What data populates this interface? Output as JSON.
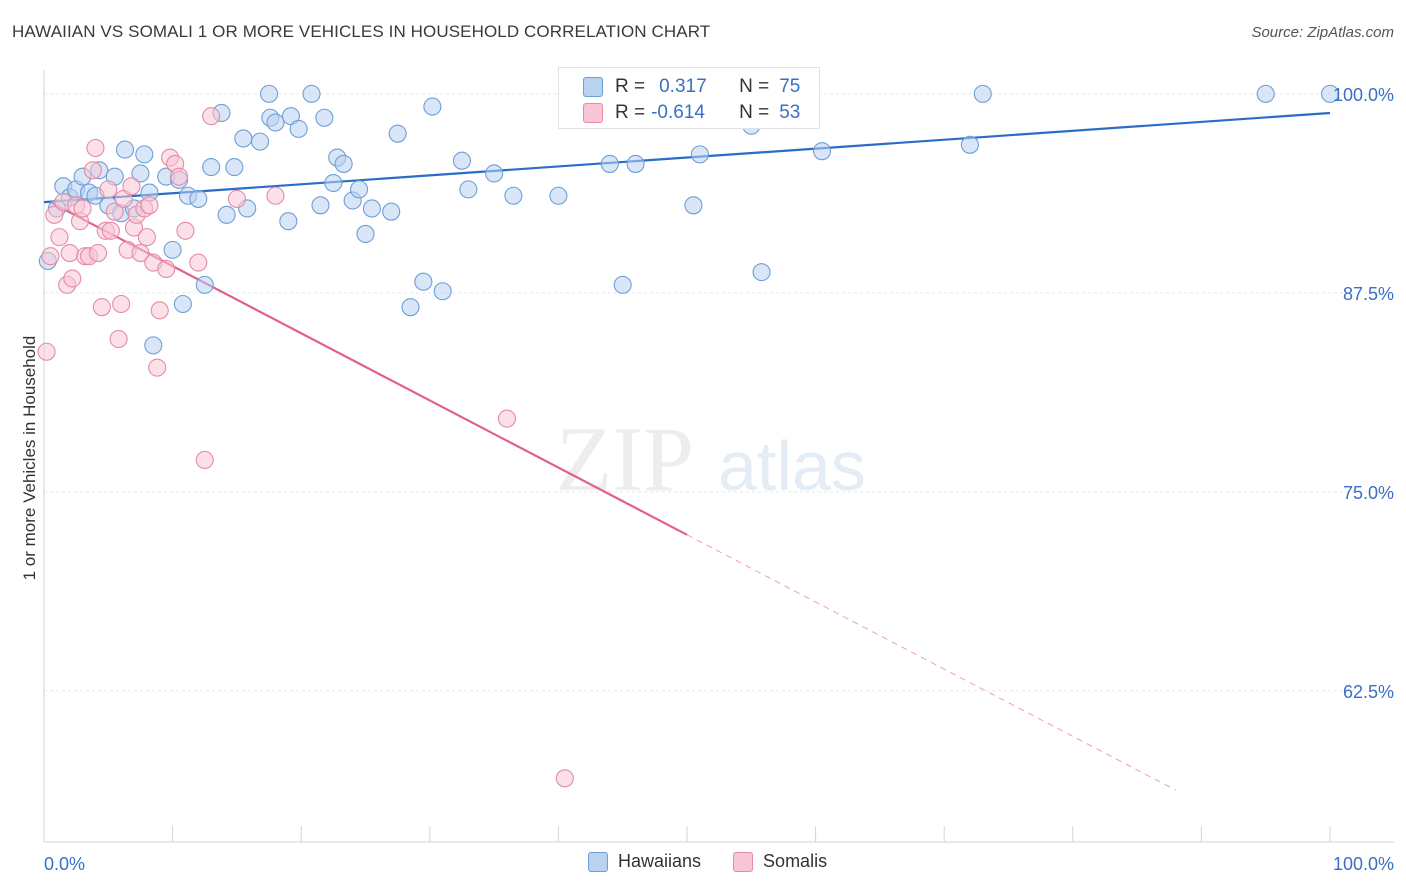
{
  "title": "HAWAIIAN VS SOMALI 1 OR MORE VEHICLES IN HOUSEHOLD CORRELATION CHART",
  "source": "Source: ZipAtlas.com",
  "watermark": {
    "zip": "ZIP",
    "atlas": "atlas"
  },
  "colors": {
    "hawaiians_fill": "#b8d2f0",
    "hawaiians_stroke": "#6d9fd8",
    "hawaiians_line": "#2a6cc8",
    "somalis_fill": "#f7c6d6",
    "somalis_stroke": "#e58aa9",
    "somalis_line": "#e0608e",
    "axis_label": "#3a6fc4"
  },
  "stats": {
    "hawaiians": {
      "r_label": "R =",
      "r_value": "0.317",
      "n_label": "N =",
      "n_value": "75"
    },
    "somalis": {
      "r_label": "R =",
      "r_value": "-0.614",
      "n_label": "N =",
      "n_value": "53"
    }
  },
  "chart_data": {
    "type": "scatter",
    "title": "HAWAIIAN VS SOMALI 1 OR MORE VEHICLES IN HOUSEHOLD CORRELATION CHART",
    "xlabel": "",
    "ylabel": "1 or more Vehicles in Household",
    "xlim": [
      0,
      100
    ],
    "ylim": [
      53,
      101.5
    ],
    "x_tick_labels": {
      "left": "0.0%",
      "right": "100.0%"
    },
    "y_ticks": [
      {
        "value": 100,
        "label": "100.0%"
      },
      {
        "value": 87.5,
        "label": "87.5%"
      },
      {
        "value": 75,
        "label": "75.0%"
      },
      {
        "value": 62.5,
        "label": "62.5%"
      }
    ],
    "grid": true,
    "legend": [
      "Hawaiians",
      "Somalis"
    ],
    "series": [
      {
        "name": "Hawaiians",
        "trend": {
          "x0": 0,
          "y0": 93.2,
          "x1": 100,
          "y1": 98.8,
          "dashed_from": null
        },
        "points": [
          [
            0.3,
            89.5
          ],
          [
            1.0,
            92.8
          ],
          [
            1.5,
            94.2
          ],
          [
            2.0,
            93.5
          ],
          [
            2.5,
            94.0
          ],
          [
            3.0,
            94.8
          ],
          [
            3.5,
            93.8
          ],
          [
            4.0,
            93.6
          ],
          [
            4.3,
            95.2
          ],
          [
            5.0,
            93.0
          ],
          [
            5.5,
            94.8
          ],
          [
            6.0,
            92.5
          ],
          [
            6.3,
            96.5
          ],
          [
            7.0,
            92.8
          ],
          [
            7.5,
            95.0
          ],
          [
            7.8,
            96.2
          ],
          [
            8.2,
            93.8
          ],
          [
            8.5,
            84.2
          ],
          [
            9.5,
            94.8
          ],
          [
            10.0,
            90.2
          ],
          [
            10.5,
            94.6
          ],
          [
            10.8,
            86.8
          ],
          [
            11.2,
            93.6
          ],
          [
            12.0,
            93.4
          ],
          [
            12.5,
            88.0
          ],
          [
            13.0,
            95.4
          ],
          [
            13.8,
            98.8
          ],
          [
            14.2,
            92.4
          ],
          [
            14.8,
            95.4
          ],
          [
            15.5,
            97.2
          ],
          [
            15.8,
            92.8
          ],
          [
            16.8,
            97.0
          ],
          [
            17.5,
            100.0
          ],
          [
            17.6,
            98.5
          ],
          [
            18.0,
            98.2
          ],
          [
            19.0,
            92.0
          ],
          [
            19.2,
            98.6
          ],
          [
            19.8,
            97.8
          ],
          [
            20.8,
            100.0
          ],
          [
            21.5,
            93.0
          ],
          [
            21.8,
            98.5
          ],
          [
            22.5,
            94.4
          ],
          [
            22.8,
            96.0
          ],
          [
            23.3,
            95.6
          ],
          [
            24.0,
            93.3
          ],
          [
            24.5,
            94.0
          ],
          [
            25.0,
            91.2
          ],
          [
            25.5,
            92.8
          ],
          [
            27.0,
            92.6
          ],
          [
            27.5,
            97.5
          ],
          [
            28.5,
            86.6
          ],
          [
            29.5,
            88.2
          ],
          [
            30.2,
            99.2
          ],
          [
            31.0,
            87.6
          ],
          [
            32.5,
            95.8
          ],
          [
            33.0,
            94.0
          ],
          [
            35.0,
            95.0
          ],
          [
            36.5,
            93.6
          ],
          [
            40.0,
            93.6
          ],
          [
            44.0,
            95.6
          ],
          [
            45.0,
            88.0
          ],
          [
            46.0,
            95.6
          ],
          [
            50.0,
            100.0
          ],
          [
            50.5,
            93.0
          ],
          [
            51.0,
            96.2
          ],
          [
            55.0,
            98.0
          ],
          [
            55.8,
            88.8
          ],
          [
            60.5,
            96.4
          ],
          [
            72.0,
            96.8
          ],
          [
            73.0,
            100.0
          ],
          [
            95.0,
            100.0
          ],
          [
            100.0,
            100.0
          ]
        ]
      },
      {
        "name": "Somalis",
        "trend": {
          "x0": 0,
          "y0": 93.4,
          "x1": 100,
          "y1": 51.2,
          "dashed_from": 50
        },
        "points": [
          [
            0.2,
            83.8
          ],
          [
            0.5,
            89.8
          ],
          [
            0.8,
            92.4
          ],
          [
            1.2,
            91.0
          ],
          [
            1.5,
            93.2
          ],
          [
            1.8,
            88.0
          ],
          [
            2.0,
            90.0
          ],
          [
            2.2,
            88.4
          ],
          [
            2.5,
            93.0
          ],
          [
            2.8,
            92.0
          ],
          [
            3.0,
            92.8
          ],
          [
            3.2,
            89.8
          ],
          [
            3.5,
            89.8
          ],
          [
            3.8,
            95.2
          ],
          [
            4.0,
            96.6
          ],
          [
            4.2,
            90.0
          ],
          [
            4.5,
            86.6
          ],
          [
            4.8,
            91.4
          ],
          [
            5.0,
            94.0
          ],
          [
            5.2,
            91.4
          ],
          [
            5.5,
            92.6
          ],
          [
            5.8,
            84.6
          ],
          [
            6.0,
            86.8
          ],
          [
            6.2,
            93.4
          ],
          [
            6.5,
            90.2
          ],
          [
            6.8,
            94.2
          ],
          [
            7.0,
            91.6
          ],
          [
            7.2,
            92.4
          ],
          [
            7.5,
            90.0
          ],
          [
            7.8,
            92.8
          ],
          [
            8.0,
            91.0
          ],
          [
            8.2,
            93.0
          ],
          [
            8.5,
            89.4
          ],
          [
            8.8,
            82.8
          ],
          [
            9.0,
            86.4
          ],
          [
            9.5,
            89.0
          ],
          [
            9.8,
            96.0
          ],
          [
            10.2,
            95.6
          ],
          [
            10.5,
            94.8
          ],
          [
            11.0,
            91.4
          ],
          [
            12.0,
            89.4
          ],
          [
            12.5,
            77.0
          ],
          [
            13.0,
            98.6
          ],
          [
            15.0,
            93.4
          ],
          [
            18.0,
            93.6
          ],
          [
            36.0,
            79.6
          ],
          [
            40.5,
            57.0
          ]
        ]
      }
    ]
  }
}
